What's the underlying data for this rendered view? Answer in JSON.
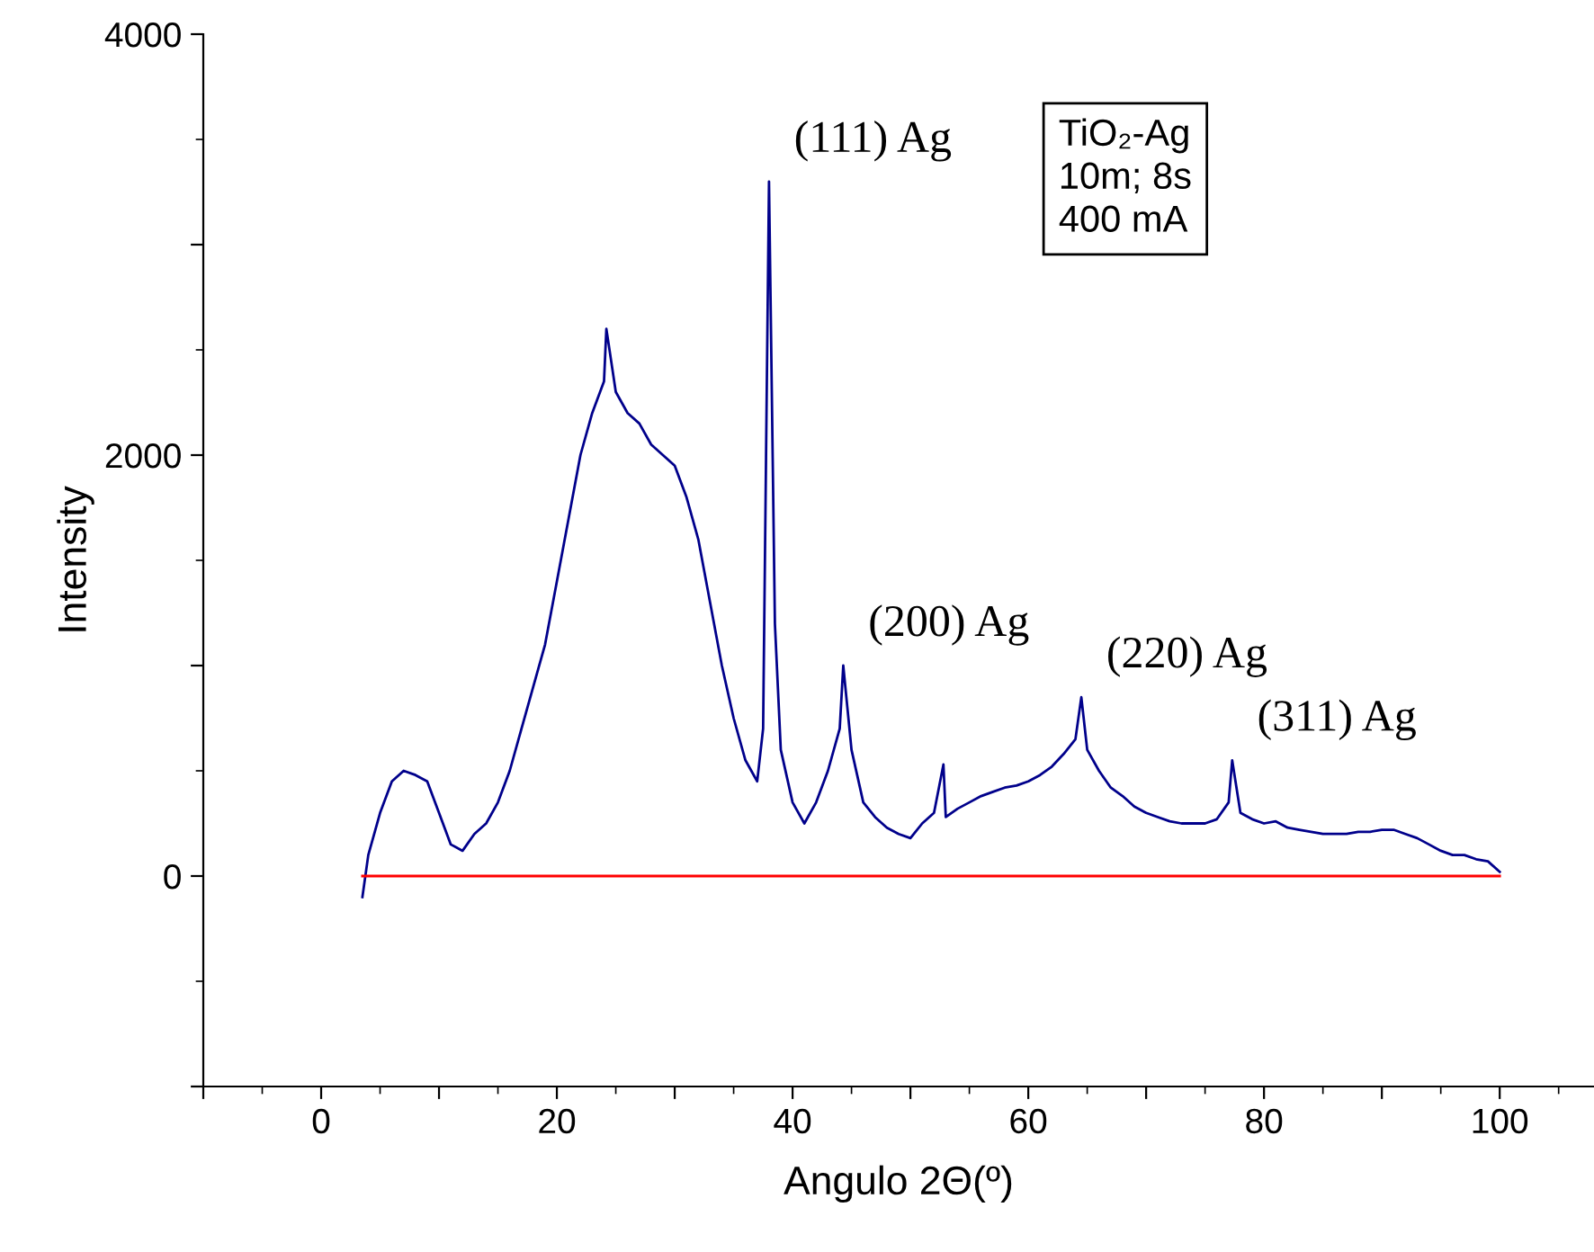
{
  "chart_data": {
    "type": "line",
    "xlabel": "Angulo 2Θ(º)",
    "ylabel": "Intensity",
    "xlim": [
      -10,
      108
    ],
    "ylim": [
      -1000,
      4000
    ],
    "xticks": [
      {
        "value": -10,
        "label": null
      },
      0,
      {
        "value": 10,
        "label": null
      },
      20,
      {
        "value": 30,
        "label": null
      },
      40,
      {
        "value": 50,
        "label": null
      },
      60,
      {
        "value": 70,
        "label": null
      },
      80,
      {
        "value": 90,
        "label": null
      },
      100
    ],
    "yticks": [
      {
        "value": -1000,
        "label": null
      },
      0,
      {
        "value": 1000,
        "label": null
      },
      2000,
      {
        "value": 3000,
        "label": null
      },
      4000
    ],
    "grid": false,
    "legend": false,
    "series": [
      {
        "color": "#00008b",
        "x": [
          3.5,
          4,
          5,
          6,
          7,
          8,
          9,
          10,
          11,
          12,
          13,
          14,
          15,
          16,
          17,
          18,
          19,
          20,
          21,
          22,
          23,
          24,
          24.2,
          25,
          26,
          27,
          28,
          29,
          30,
          31,
          32,
          33,
          34,
          35,
          36,
          37,
          37.5,
          38,
          38.5,
          39,
          40,
          41,
          42,
          43,
          44,
          44.3,
          45,
          46,
          47,
          48,
          49,
          50,
          51,
          52,
          52.8,
          53,
          54,
          55,
          56,
          57,
          58,
          59,
          60,
          61,
          62,
          63,
          64,
          64.5,
          65,
          66,
          67,
          68,
          69,
          70,
          71,
          72,
          73,
          74,
          75,
          76,
          77,
          77.3,
          78,
          79,
          80,
          81,
          82,
          83,
          84,
          85,
          86,
          87,
          88,
          89,
          90,
          91,
          92,
          93,
          94,
          95,
          96,
          97,
          98,
          99,
          100
        ],
        "values": [
          -100,
          100,
          300,
          450,
          500,
          480,
          450,
          300,
          150,
          120,
          200,
          250,
          350,
          500,
          700,
          900,
          1100,
          1400,
          1700,
          2000,
          2200,
          2350,
          2600,
          2300,
          2200,
          2150,
          2050,
          2000,
          1950,
          1800,
          1600,
          1300,
          1000,
          750,
          550,
          450,
          700,
          3300,
          1200,
          600,
          350,
          250,
          350,
          500,
          700,
          1000,
          600,
          350,
          280,
          230,
          200,
          180,
          250,
          300,
          530,
          280,
          320,
          350,
          380,
          400,
          420,
          430,
          450,
          480,
          520,
          580,
          650,
          850,
          600,
          500,
          420,
          380,
          330,
          300,
          280,
          260,
          250,
          250,
          250,
          270,
          350,
          550,
          300,
          270,
          250,
          260,
          230,
          220,
          210,
          200,
          200,
          200,
          210,
          210,
          220,
          220,
          200,
          180,
          150,
          120,
          100,
          100,
          80,
          70,
          20
        ]
      },
      {
        "color": "#ff0000",
        "x": [
          3.5,
          100
        ],
        "values": [
          0,
          0
        ]
      }
    ],
    "annotations": [
      {
        "text": "(111) Ag",
        "x": 38,
        "y": 3300
      },
      {
        "text": "(200) Ag",
        "x": 44.3,
        "y": 1000
      },
      {
        "text": "(220) Ag",
        "x": 64.5,
        "y": 850
      },
      {
        "text": "(311) Ag",
        "x": 77.3,
        "y": 550
      },
      "TiO₂-Ag\n10m; 8s\n400 mA"
    ]
  }
}
